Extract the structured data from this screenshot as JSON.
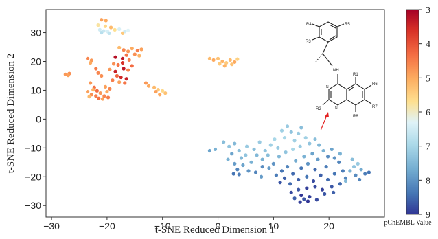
{
  "chart_data": {
    "type": "scatter",
    "title": "",
    "xlabel": "t-SNE Reduced Dimension 1",
    "ylabel": "t-SNE Reduced Dimension 2",
    "xlim": [
      -31,
      30
    ],
    "ylim": [
      -34,
      38
    ],
    "xticks": [
      -30,
      -20,
      -10,
      0,
      10,
      20
    ],
    "yticks": [
      -30,
      -20,
      -10,
      0,
      10,
      20,
      30
    ],
    "grid": false,
    "colorbar": {
      "title": "pChEMBL Value",
      "range": [
        3,
        9
      ],
      "ticks": [
        3,
        4,
        5,
        6,
        7,
        8,
        9
      ],
      "colormap": "RdYlBu",
      "inverted": true
    },
    "points": [
      {
        "x": -21,
        "y": 34.5,
        "c": 4.9
      },
      {
        "x": -20.2,
        "y": 34.2,
        "c": 5.0
      },
      {
        "x": -21.6,
        "y": 32.6,
        "c": 5.8
      },
      {
        "x": -20.3,
        "y": 32.2,
        "c": 5.6
      },
      {
        "x": -19.3,
        "y": 31.8,
        "c": 5.2
      },
      {
        "x": -21.3,
        "y": 31.0,
        "c": 6.5
      },
      {
        "x": -20.6,
        "y": 30.6,
        "c": 6.6
      },
      {
        "x": -19.9,
        "y": 30.4,
        "c": 6.4
      },
      {
        "x": -21.0,
        "y": 30.0,
        "c": 6.8
      },
      {
        "x": -19.6,
        "y": 29.8,
        "c": 6.7
      },
      {
        "x": -18.6,
        "y": 31.0,
        "c": 5.7
      },
      {
        "x": -17.8,
        "y": 31.2,
        "c": 6.4
      },
      {
        "x": -16.8,
        "y": 30.4,
        "c": 6.5
      },
      {
        "x": -16.2,
        "y": 30.8,
        "c": 6.3
      },
      {
        "x": -17.2,
        "y": 29.8,
        "c": 5.4
      },
      {
        "x": -27.5,
        "y": 15.5,
        "c": 4.8
      },
      {
        "x": -26.8,
        "y": 15.8,
        "c": 4.7
      },
      {
        "x": -27.0,
        "y": 15.2,
        "c": 4.9
      },
      {
        "x": -23.5,
        "y": 21.0,
        "c": 4.6
      },
      {
        "x": -22.8,
        "y": 20.4,
        "c": 4.8
      },
      {
        "x": -23.0,
        "y": 19.5,
        "c": 5.0
      },
      {
        "x": -22.0,
        "y": 17.5,
        "c": 4.5
      },
      {
        "x": -21.6,
        "y": 16.0,
        "c": 4.6
      },
      {
        "x": -21.0,
        "y": 15.0,
        "c": 4.7
      },
      {
        "x": -23.0,
        "y": 12.5,
        "c": 4.8
      },
      {
        "x": -22.3,
        "y": 11.0,
        "c": 4.4
      },
      {
        "x": -23.5,
        "y": 9.5,
        "c": 4.9
      },
      {
        "x": -22.8,
        "y": 8.5,
        "c": 4.7
      },
      {
        "x": -22.0,
        "y": 8.0,
        "c": 4.5
      },
      {
        "x": -21.2,
        "y": 9.0,
        "c": 4.8
      },
      {
        "x": -20.5,
        "y": 8.0,
        "c": 4.6
      },
      {
        "x": -20.0,
        "y": 9.5,
        "c": 5.0
      },
      {
        "x": -21.5,
        "y": 7.2,
        "c": 4.4
      },
      {
        "x": -20.8,
        "y": 7.0,
        "c": 4.9
      },
      {
        "x": -19.8,
        "y": 7.5,
        "c": 4.5
      },
      {
        "x": -22.5,
        "y": 10.2,
        "c": 5.1
      },
      {
        "x": -21.8,
        "y": 9.8,
        "c": 4.3
      },
      {
        "x": -23.2,
        "y": 7.8,
        "c": 5.2
      },
      {
        "x": -19.5,
        "y": 10.5,
        "c": 4.6
      },
      {
        "x": -20.3,
        "y": 11.2,
        "c": 4.9
      },
      {
        "x": -18.8,
        "y": 19.2,
        "c": 4.7
      },
      {
        "x": -18.0,
        "y": 18.8,
        "c": 4.4
      },
      {
        "x": -17.2,
        "y": 19.5,
        "c": 3.6
      },
      {
        "x": -19.5,
        "y": 17.2,
        "c": 4.8
      },
      {
        "x": -18.5,
        "y": 16.5,
        "c": 3.4
      },
      {
        "x": -17.0,
        "y": 17.5,
        "c": 3.3
      },
      {
        "x": -16.2,
        "y": 17.0,
        "c": 4.6
      },
      {
        "x": -18.2,
        "y": 15.0,
        "c": 4.2
      },
      {
        "x": -17.5,
        "y": 14.5,
        "c": 3.5
      },
      {
        "x": -16.5,
        "y": 14.0,
        "c": 3.4
      },
      {
        "x": -19.0,
        "y": 13.5,
        "c": 4.5
      },
      {
        "x": -17.8,
        "y": 12.8,
        "c": 4.9
      },
      {
        "x": -16.8,
        "y": 12.5,
        "c": 4.4
      },
      {
        "x": -18.5,
        "y": 21.5,
        "c": 3.2
      },
      {
        "x": -17.2,
        "y": 21.0,
        "c": 3.3
      },
      {
        "x": -16.0,
        "y": 20.5,
        "c": 4.5
      },
      {
        "x": -15.5,
        "y": 18.5,
        "c": 4.3
      },
      {
        "x": -17.8,
        "y": 24.8,
        "c": 5.2
      },
      {
        "x": -17.0,
        "y": 24.0,
        "c": 4.6
      },
      {
        "x": -16.2,
        "y": 23.5,
        "c": 4.8
      },
      {
        "x": -15.5,
        "y": 24.5,
        "c": 5.0
      },
      {
        "x": -14.5,
        "y": 23.8,
        "c": 4.5
      },
      {
        "x": -13.8,
        "y": 24.2,
        "c": 4.9
      },
      {
        "x": -16.5,
        "y": 22.2,
        "c": 4.4
      },
      {
        "x": -15.0,
        "y": 22.5,
        "c": 4.7
      },
      {
        "x": -14.2,
        "y": 22.0,
        "c": 5.1
      },
      {
        "x": -13.0,
        "y": 12.5,
        "c": 4.8
      },
      {
        "x": -12.5,
        "y": 11.5,
        "c": 5.0
      },
      {
        "x": -11.5,
        "y": 11.0,
        "c": 5.2
      },
      {
        "x": -10.8,
        "y": 10.2,
        "c": 5.4
      },
      {
        "x": -10.0,
        "y": 9.8,
        "c": 5.6
      },
      {
        "x": -9.5,
        "y": 9.0,
        "c": 5.3
      },
      {
        "x": -10.5,
        "y": 8.5,
        "c": 5.0
      },
      {
        "x": -11.2,
        "y": 9.5,
        "c": 4.9
      },
      {
        "x": -1.5,
        "y": 21.0,
        "c": 5.2
      },
      {
        "x": -0.8,
        "y": 20.5,
        "c": 5.0
      },
      {
        "x": 0,
        "y": 21.0,
        "c": 5.3
      },
      {
        "x": 0.8,
        "y": 20.0,
        "c": 5.1
      },
      {
        "x": 1.5,
        "y": 19.5,
        "c": 5.4
      },
      {
        "x": 2.2,
        "y": 20.5,
        "c": 5.2
      },
      {
        "x": 3.0,
        "y": 19.8,
        "c": 5.0
      },
      {
        "x": 3.5,
        "y": 20.8,
        "c": 5.5
      },
      {
        "x": 2.5,
        "y": 19.0,
        "c": 5.3
      },
      {
        "x": 1.2,
        "y": 18.5,
        "c": 5.1
      },
      {
        "x": 0.3,
        "y": 19.2,
        "c": 5.4
      },
      {
        "x": -1.5,
        "y": -11.0,
        "c": 7.8
      },
      {
        "x": -0.5,
        "y": -10.5,
        "c": 7.6
      },
      {
        "x": 1.0,
        "y": -8.0,
        "c": 7.4
      },
      {
        "x": 2.0,
        "y": -9.5,
        "c": 7.3
      },
      {
        "x": 3.0,
        "y": -8.5,
        "c": 7.5
      },
      {
        "x": 2.5,
        "y": -12.0,
        "c": 7.8
      },
      {
        "x": 3.8,
        "y": -11.0,
        "c": 7.4
      },
      {
        "x": 1.8,
        "y": -14.0,
        "c": 7.6
      },
      {
        "x": 3.0,
        "y": -15.5,
        "c": 7.9
      },
      {
        "x": 4.2,
        "y": -13.5,
        "c": 7.5
      },
      {
        "x": 5.0,
        "y": -12.5,
        "c": 7.3
      },
      {
        "x": 4.5,
        "y": -16.0,
        "c": 7.8
      },
      {
        "x": 3.5,
        "y": -17.5,
        "c": 8.2
      },
      {
        "x": 2.8,
        "y": -19.0,
        "c": 8.4
      },
      {
        "x": 3.8,
        "y": -19.2,
        "c": 8.3
      },
      {
        "x": 5.5,
        "y": -18.0,
        "c": 8.0
      },
      {
        "x": 6.0,
        "y": -15.0,
        "c": 7.6
      },
      {
        "x": 5.2,
        "y": -9.5,
        "c": 7.2
      },
      {
        "x": 6.5,
        "y": -10.5,
        "c": 7.4
      },
      {
        "x": 7.5,
        "y": -8.0,
        "c": 7.2
      },
      {
        "x": 7.0,
        "y": -12.5,
        "c": 7.5
      },
      {
        "x": 8.5,
        "y": -11.0,
        "c": 7.3
      },
      {
        "x": 8.0,
        "y": -14.0,
        "c": 7.6
      },
      {
        "x": 9.5,
        "y": -9.0,
        "c": 7.1
      },
      {
        "x": 9.0,
        "y": -12.5,
        "c": 7.4
      },
      {
        "x": 10.2,
        "y": -7.0,
        "c": 7.0
      },
      {
        "x": 10.8,
        "y": -10.0,
        "c": 7.2
      },
      {
        "x": 11.5,
        "y": -4.0,
        "c": 7.1
      },
      {
        "x": 12.5,
        "y": -2.5,
        "c": 7.2
      },
      {
        "x": 13.2,
        "y": -4.5,
        "c": 7.3
      },
      {
        "x": 12.0,
        "y": -6.5,
        "c": 7.0
      },
      {
        "x": 13.8,
        "y": -7.5,
        "c": 7.1
      },
      {
        "x": 14.5,
        "y": -5.0,
        "c": 7.2
      },
      {
        "x": 15.0,
        "y": -3.0,
        "c": 7.4
      },
      {
        "x": 15.8,
        "y": -6.5,
        "c": 7.1
      },
      {
        "x": 11.0,
        "y": -13.0,
        "c": 7.5
      },
      {
        "x": 12.2,
        "y": -11.5,
        "c": 7.3
      },
      {
        "x": 13.5,
        "y": -10.5,
        "c": 7.0
      },
      {
        "x": 14.8,
        "y": -9.5,
        "c": 7.2
      },
      {
        "x": 16.5,
        "y": -8.5,
        "c": 7.3
      },
      {
        "x": 17.5,
        "y": -7.0,
        "c": 7.4
      },
      {
        "x": 18.2,
        "y": -9.0,
        "c": 7.5
      },
      {
        "x": 19.0,
        "y": -11.0,
        "c": 7.6
      },
      {
        "x": 17.0,
        "y": -12.0,
        "c": 7.8
      },
      {
        "x": 15.5,
        "y": -13.0,
        "c": 7.6
      },
      {
        "x": 14.0,
        "y": -14.5,
        "c": 7.7
      },
      {
        "x": 16.2,
        "y": -15.5,
        "c": 8.0
      },
      {
        "x": 18.0,
        "y": -14.0,
        "c": 7.9
      },
      {
        "x": 19.8,
        "y": -13.0,
        "c": 8.1
      },
      {
        "x": 20.5,
        "y": -10.5,
        "c": 7.8
      },
      {
        "x": 21.0,
        "y": -13.5,
        "c": 8.0
      },
      {
        "x": 22.0,
        "y": -12.0,
        "c": 7.6
      },
      {
        "x": 21.8,
        "y": -15.0,
        "c": 8.2
      },
      {
        "x": 19.5,
        "y": -16.5,
        "c": 8.3
      },
      {
        "x": 17.5,
        "y": -17.5,
        "c": 8.5
      },
      {
        "x": 15.0,
        "y": -17.0,
        "c": 8.4
      },
      {
        "x": 12.5,
        "y": -16.5,
        "c": 8.2
      },
      {
        "x": 11.5,
        "y": -18.0,
        "c": 8.4
      },
      {
        "x": 13.5,
        "y": -19.0,
        "c": 8.5
      },
      {
        "x": 12.0,
        "y": -20.5,
        "c": 8.6
      },
      {
        "x": 10.5,
        "y": -19.5,
        "c": 8.3
      },
      {
        "x": 11.2,
        "y": -22.0,
        "c": 8.7
      },
      {
        "x": 13.0,
        "y": -22.5,
        "c": 8.5
      },
      {
        "x": 14.5,
        "y": -21.0,
        "c": 8.6
      },
      {
        "x": 16.0,
        "y": -20.0,
        "c": 8.4
      },
      {
        "x": 17.2,
        "y": -21.5,
        "c": 8.8
      },
      {
        "x": 18.5,
        "y": -19.5,
        "c": 8.6
      },
      {
        "x": 19.8,
        "y": -21.0,
        "c": 8.5
      },
      {
        "x": 21.0,
        "y": -19.0,
        "c": 8.4
      },
      {
        "x": 22.5,
        "y": -18.0,
        "c": 8.3
      },
      {
        "x": 20.5,
        "y": -23.5,
        "c": 8.7
      },
      {
        "x": 18.8,
        "y": -24.5,
        "c": 8.9
      },
      {
        "x": 17.5,
        "y": -23.5,
        "c": 8.8
      },
      {
        "x": 16.0,
        "y": -24.0,
        "c": 8.9
      },
      {
        "x": 14.5,
        "y": -24.5,
        "c": 8.7
      },
      {
        "x": 13.2,
        "y": -25.5,
        "c": 8.8
      },
      {
        "x": 15.0,
        "y": -26.5,
        "c": 9.0
      },
      {
        "x": 16.5,
        "y": -27.0,
        "c": 8.9
      },
      {
        "x": 17.8,
        "y": -28.0,
        "c": 8.8
      },
      {
        "x": 16.2,
        "y": -28.5,
        "c": 9.0
      },
      {
        "x": 14.8,
        "y": -28.8,
        "c": 8.9
      },
      {
        "x": 15.5,
        "y": -27.8,
        "c": 8.7
      },
      {
        "x": 13.8,
        "y": -27.5,
        "c": 8.6
      },
      {
        "x": 19.2,
        "y": -26.0,
        "c": 8.7
      },
      {
        "x": 20.8,
        "y": -25.5,
        "c": 8.6
      },
      {
        "x": 22.0,
        "y": -22.5,
        "c": 8.5
      },
      {
        "x": 23.0,
        "y": -20.5,
        "c": 8.2
      },
      {
        "x": 23.8,
        "y": -18.0,
        "c": 7.6
      },
      {
        "x": 24.5,
        "y": -16.5,
        "c": 7.3
      },
      {
        "x": 25.2,
        "y": -15.5,
        "c": 7.2
      },
      {
        "x": 25.8,
        "y": -17.5,
        "c": 7.7
      },
      {
        "x": 24.8,
        "y": -19.5,
        "c": 8.1
      },
      {
        "x": 26.5,
        "y": -19.0,
        "c": 8.3
      },
      {
        "x": 27.2,
        "y": -18.5,
        "c": 8.4
      },
      {
        "x": 25.5,
        "y": -21.0,
        "c": 8.2
      },
      {
        "x": 24.2,
        "y": -14.0,
        "c": 7.4
      },
      {
        "x": 23.0,
        "y": -21.5,
        "c": 7.5
      },
      {
        "x": 10.0,
        "y": -15.5,
        "c": 8.0
      },
      {
        "x": 9.2,
        "y": -17.0,
        "c": 7.9
      },
      {
        "x": 8.0,
        "y": -16.5,
        "c": 8.1
      },
      {
        "x": 6.8,
        "y": -18.5,
        "c": 8.2
      },
      {
        "x": 7.8,
        "y": -20.0,
        "c": 7.9
      }
    ]
  },
  "molecule": {
    "labels": [
      "R4",
      "R3",
      "R5",
      "NH",
      "R1",
      "R2",
      "R6",
      "R7",
      "R8"
    ]
  }
}
